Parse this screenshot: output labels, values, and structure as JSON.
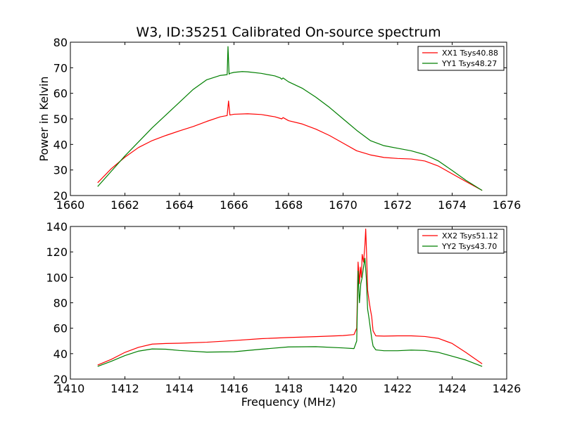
{
  "figure": {
    "title": "W3, ID:35251 Calibrated On-source spectrum"
  },
  "colors": {
    "XX": "#ff0000",
    "YY": "#007f00",
    "axes": "#000000",
    "background": "#ffffff"
  },
  "chart_data": [
    {
      "type": "line",
      "title": "W3, ID:35251 Calibrated On-source spectrum",
      "xlabel": "",
      "ylabel": "Power in Kelvin",
      "xlim": [
        1660,
        1676
      ],
      "ylim": [
        20,
        80
      ],
      "xticks": [
        1660,
        1662,
        1664,
        1666,
        1668,
        1670,
        1672,
        1674,
        1676
      ],
      "yticks": [
        20,
        30,
        40,
        50,
        60,
        70,
        80
      ],
      "grid": false,
      "legend_position": "top-right",
      "series": [
        {
          "name": "XX1 Tsys40.88",
          "color": "#ff0000",
          "x": [
            1661.0,
            1661.5,
            1662.0,
            1662.5,
            1663.0,
            1663.5,
            1664.0,
            1664.5,
            1665.0,
            1665.5,
            1665.75,
            1665.8,
            1665.85,
            1666.0,
            1666.5,
            1667.0,
            1667.5,
            1667.75,
            1667.8,
            1668.0,
            1668.5,
            1669.0,
            1669.5,
            1670.0,
            1670.5,
            1671.0,
            1671.5,
            1672.0,
            1672.5,
            1673.0,
            1673.5,
            1674.0,
            1674.5,
            1675.1
          ],
          "y": [
            25.0,
            30.5,
            35.0,
            38.8,
            41.5,
            43.5,
            45.3,
            47.0,
            49.0,
            50.8,
            51.3,
            57.0,
            51.5,
            51.8,
            52.0,
            51.7,
            50.8,
            50.0,
            50.5,
            49.3,
            48.0,
            46.0,
            43.5,
            40.5,
            37.5,
            35.9,
            34.9,
            34.5,
            34.3,
            33.5,
            31.5,
            28.5,
            25.5,
            22.0
          ]
        },
        {
          "name": "YY1 Tsys48.27",
          "color": "#007f00",
          "x": [
            1661.0,
            1661.5,
            1662.0,
            1662.5,
            1663.0,
            1663.5,
            1664.0,
            1664.5,
            1665.0,
            1665.5,
            1665.75,
            1665.78,
            1665.82,
            1665.85,
            1666.0,
            1666.3,
            1666.5,
            1667.0,
            1667.5,
            1667.7,
            1667.75,
            1667.8,
            1668.0,
            1668.5,
            1669.0,
            1669.5,
            1670.0,
            1670.5,
            1671.0,
            1671.5,
            1672.0,
            1672.5,
            1673.0,
            1673.5,
            1674.0,
            1674.5,
            1675.1
          ],
          "y": [
            23.5,
            29.5,
            35.5,
            41.0,
            46.5,
            51.5,
            56.5,
            61.5,
            65.3,
            67.0,
            67.3,
            78.3,
            67.5,
            67.8,
            68.2,
            68.5,
            68.4,
            67.8,
            66.8,
            66.0,
            65.5,
            66.0,
            64.5,
            62.0,
            58.5,
            54.5,
            50.0,
            45.5,
            41.5,
            39.5,
            38.5,
            37.5,
            36.0,
            33.5,
            29.8,
            26.0,
            22.0
          ]
        }
      ]
    },
    {
      "type": "line",
      "title": "",
      "xlabel": "Frequency (MHz)",
      "ylabel": "",
      "xlim": [
        1410,
        1426
      ],
      "ylim": [
        20,
        140
      ],
      "xticks": [
        1410,
        1412,
        1414,
        1416,
        1418,
        1420,
        1422,
        1424,
        1426
      ],
      "yticks": [
        20,
        40,
        60,
        80,
        100,
        120,
        140
      ],
      "grid": false,
      "legend_position": "top-right",
      "series": [
        {
          "name": "XX2 Tsys51.12",
          "color": "#ff0000",
          "x": [
            1411.0,
            1411.5,
            1412.0,
            1412.5,
            1413.0,
            1413.5,
            1414.0,
            1415.0,
            1416.0,
            1417.0,
            1418.0,
            1419.0,
            1420.0,
            1420.4,
            1420.5,
            1420.55,
            1420.6,
            1420.63,
            1420.67,
            1420.7,
            1420.75,
            1420.8,
            1420.83,
            1420.86,
            1420.9,
            1420.95,
            1421.0,
            1421.05,
            1421.1,
            1421.2,
            1421.5,
            1422.0,
            1422.5,
            1423.0,
            1423.5,
            1424.0,
            1424.5,
            1425.1
          ],
          "y": [
            31.0,
            35.5,
            41.0,
            45.0,
            47.5,
            48.0,
            48.2,
            49.0,
            50.3,
            51.8,
            52.7,
            53.4,
            54.2,
            55.0,
            60.0,
            112.0,
            95.0,
            108.0,
            100.0,
            118.0,
            112.0,
            125.0,
            138.0,
            120.0,
            90.0,
            82.0,
            75.0,
            69.0,
            58.0,
            54.0,
            53.8,
            54.0,
            54.0,
            53.5,
            52.0,
            48.0,
            41.0,
            32.0
          ]
        },
        {
          "name": "YY2 Tsys43.70",
          "color": "#007f00",
          "x": [
            1411.0,
            1411.5,
            1412.0,
            1412.5,
            1413.0,
            1413.5,
            1414.0,
            1415.0,
            1416.0,
            1417.0,
            1418.0,
            1419.0,
            1420.0,
            1420.4,
            1420.5,
            1420.55,
            1420.6,
            1420.65,
            1420.7,
            1420.75,
            1420.8,
            1420.85,
            1420.9,
            1420.95,
            1421.0,
            1421.05,
            1421.1,
            1421.2,
            1421.5,
            1422.0,
            1422.5,
            1423.0,
            1423.5,
            1424.0,
            1424.5,
            1425.1
          ],
          "y": [
            30.0,
            34.0,
            38.5,
            42.0,
            43.7,
            43.5,
            42.5,
            41.2,
            41.5,
            43.5,
            45.3,
            45.5,
            44.5,
            44.0,
            50.0,
            105.0,
            80.0,
            95.0,
            100.0,
            108.0,
            115.0,
            100.0,
            75.0,
            68.0,
            60.0,
            52.0,
            46.0,
            43.0,
            42.3,
            42.3,
            42.8,
            42.5,
            41.0,
            38.0,
            35.0,
            30.0
          ]
        }
      ]
    }
  ]
}
